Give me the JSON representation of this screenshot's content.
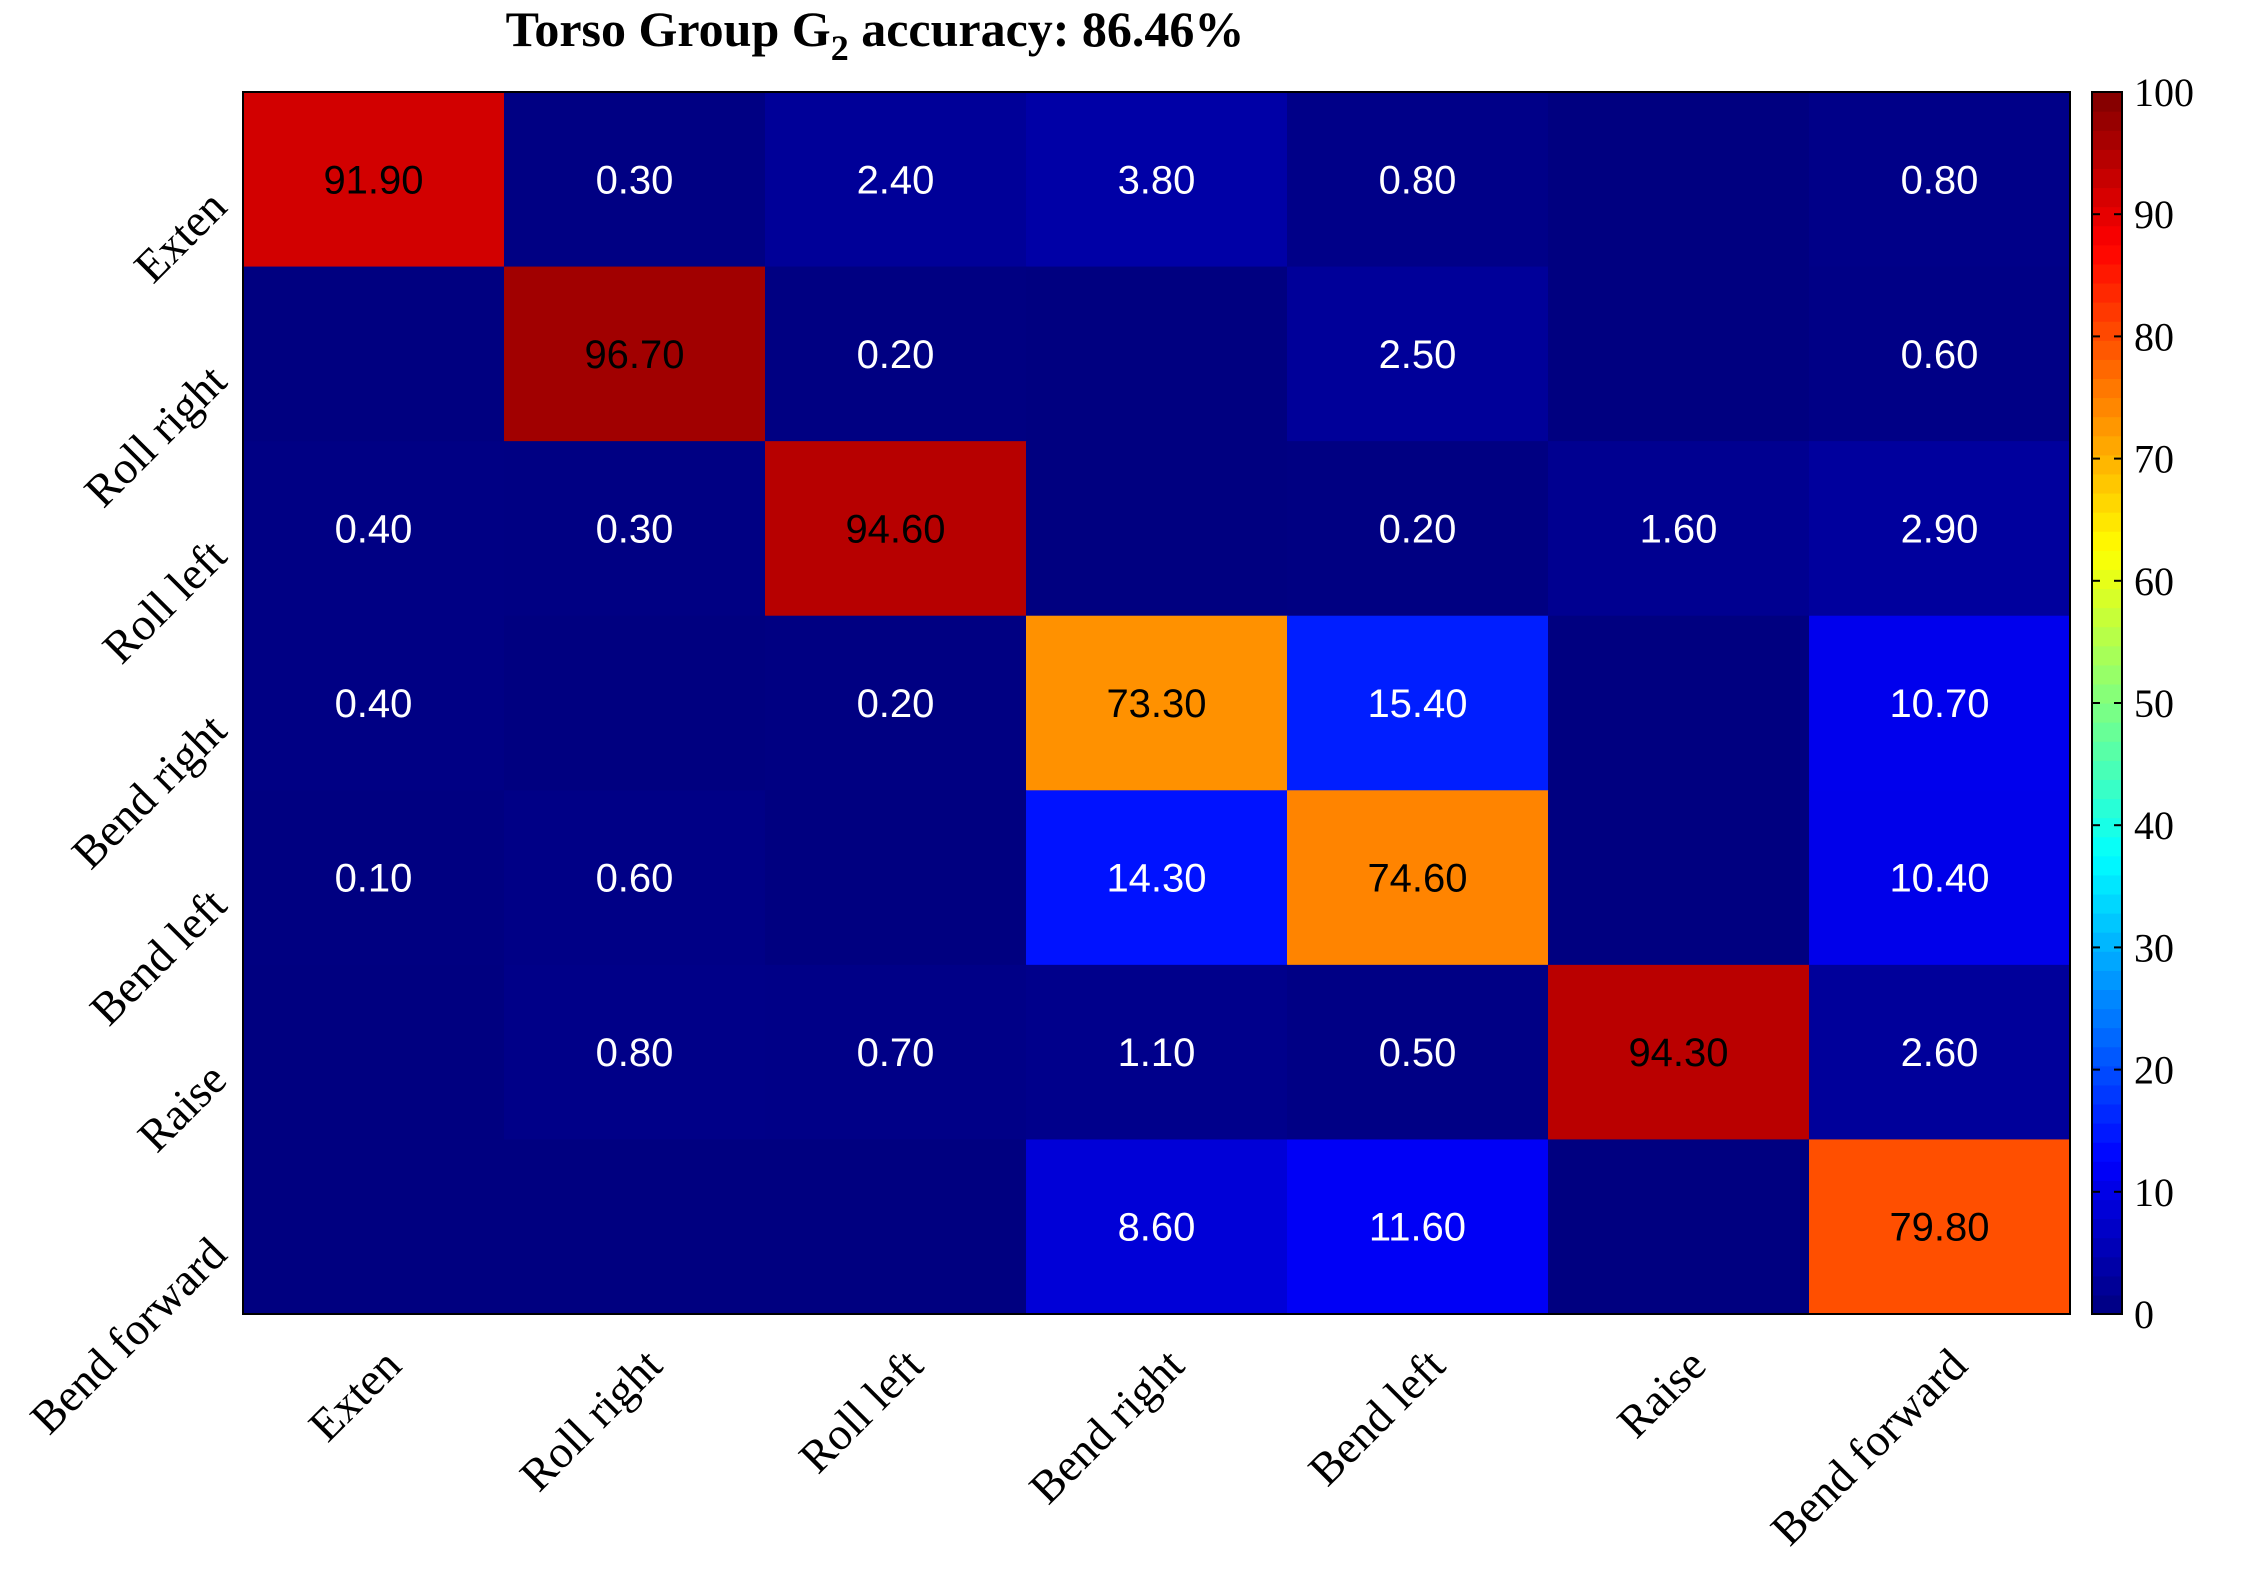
{
  "chart_data": {
    "type": "heatmap",
    "title": {
      "prefix": "Torso Group G",
      "subscript": "2",
      "suffix": " accuracy: 86.46%"
    },
    "rows": [
      "Exten",
      "Roll right",
      "Roll left",
      "Bend right",
      "Bend left",
      "Raise",
      "Bend forward"
    ],
    "columns": [
      "Exten",
      "Roll right",
      "Roll left",
      "Bend right",
      "Bend left",
      "Raise",
      "Bend forward"
    ],
    "values": [
      [
        91.9,
        0.3,
        2.4,
        3.8,
        0.8,
        0,
        0.8
      ],
      [
        0,
        96.7,
        0.2,
        0,
        2.5,
        0,
        0.6
      ],
      [
        0.4,
        0.3,
        94.6,
        0,
        0.2,
        1.6,
        2.9
      ],
      [
        0.4,
        0,
        0.2,
        73.3,
        15.4,
        0,
        10.7
      ],
      [
        0.1,
        0.6,
        0,
        14.3,
        74.6,
        0,
        10.4
      ],
      [
        0,
        0.8,
        0.7,
        1.1,
        0.5,
        94.3,
        2.6
      ],
      [
        0,
        0,
        0,
        8.6,
        11.6,
        0,
        79.8
      ]
    ],
    "cell_labels": [
      [
        "91.90",
        "0.30",
        "2.40",
        "3.80",
        "0.80",
        "",
        "0.80"
      ],
      [
        "",
        "96.70",
        "0.20",
        "",
        "2.50",
        "",
        "0.60"
      ],
      [
        "0.40",
        "0.30",
        "94.60",
        "",
        "0.20",
        "1.60",
        "2.90"
      ],
      [
        "0.40",
        "",
        "0.20",
        "73.30",
        "15.40",
        "",
        "10.70"
      ],
      [
        "0.10",
        "0.60",
        "",
        "14.30",
        "74.60",
        "",
        "10.40"
      ],
      [
        "",
        "0.80",
        "0.70",
        "1.10",
        "0.50",
        "94.30",
        "2.60"
      ],
      [
        "",
        "",
        "",
        "8.60",
        "11.60",
        "",
        "79.80"
      ]
    ],
    "colormap": "jet",
    "colorbar": {
      "range": [
        0,
        100
      ],
      "ticks": [
        0,
        10,
        20,
        30,
        40,
        50,
        60,
        70,
        80,
        90,
        100
      ],
      "tick_labels": [
        "0",
        "10",
        "20",
        "30",
        "40",
        "50",
        "60",
        "70",
        "80",
        "90",
        "100"
      ]
    },
    "label_colors": {
      "light": "#ffffff",
      "dark": "#000000"
    },
    "xlabel": "",
    "ylabel": "",
    "grid": false,
    "legend": "colorbar-right"
  }
}
